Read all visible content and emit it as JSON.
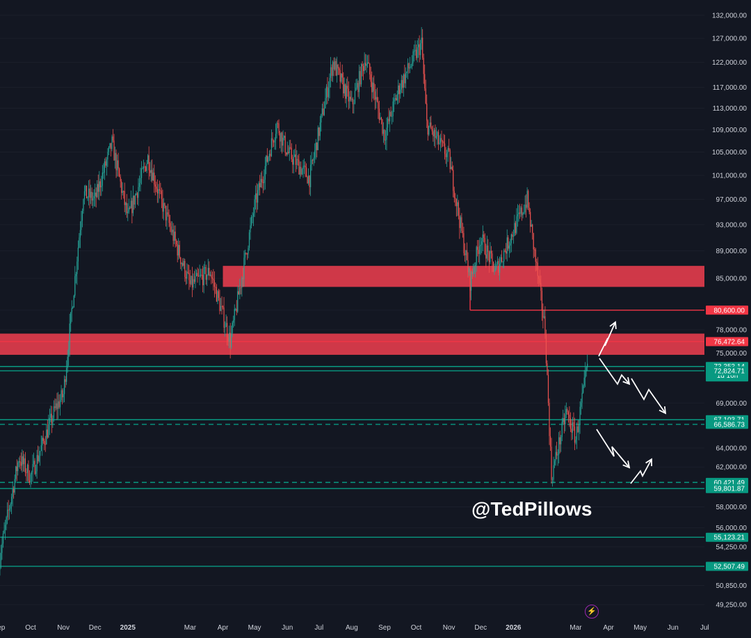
{
  "chart_data": {
    "type": "candlestick",
    "y_axis": {
      "scale": "log",
      "ticks": [
        132000,
        127000,
        122000,
        117000,
        113000,
        109000,
        105000,
        101000,
        97000,
        93000,
        89000,
        85000,
        80600,
        78000,
        75000,
        69000,
        64000,
        62000,
        58000,
        56000,
        54250,
        50850,
        49250
      ],
      "tick_labels": [
        "132,000.00",
        "127,000.00",
        "122,000.00",
        "117,000.00",
        "113,000.00",
        "109,000.00",
        "105,000.00",
        "101,000.00",
        "97,000.00",
        "93,000.00",
        "89,000.00",
        "85,000.00",
        "80,600.00",
        "78,000.00",
        "75,000.00",
        "69,000.00",
        "64,000.00",
        "62,000.00",
        "58,000.00",
        "56,000.00",
        "54,250.00",
        "50,850.00",
        "49,250.00"
      ]
    },
    "x_axis": {
      "ticks": [
        "Sep",
        "Oct",
        "Nov",
        "Dec",
        "2025",
        "Mar",
        "Apr",
        "May",
        "Jun",
        "Jul",
        "Aug",
        "Sep",
        "Oct",
        "Nov",
        "Dec",
        "2026",
        "Mar",
        "Apr",
        "May",
        "Jun",
        "Jul"
      ],
      "bold": [
        "2025",
        "2026"
      ]
    },
    "price_path": [
      {
        "x": "2024-09",
        "y": 53000
      },
      {
        "x": "2024-09-20",
        "y": 63000
      },
      {
        "x": "2024-10",
        "y": 61000
      },
      {
        "x": "2024-10-25",
        "y": 68500
      },
      {
        "x": "2024-11",
        "y": 70000
      },
      {
        "x": "2024-11-20",
        "y": 98000
      },
      {
        "x": "2024-12",
        "y": 97000
      },
      {
        "x": "2024-12-17",
        "y": 106500
      },
      {
        "x": "2025-01",
        "y": 94000
      },
      {
        "x": "2025-01-20",
        "y": 104000
      },
      {
        "x": "2025-02",
        "y": 97000
      },
      {
        "x": "2025-03",
        "y": 84000
      },
      {
        "x": "2025-03-20",
        "y": 86000
      },
      {
        "x": "2025-04-08",
        "y": 76500
      },
      {
        "x": "2025-05",
        "y": 96000
      },
      {
        "x": "2025-05-22",
        "y": 110000
      },
      {
        "x": "2025-06",
        "y": 105000
      },
      {
        "x": "2025-06-22",
        "y": 100500
      },
      {
        "x": "2025-07-14",
        "y": 122000
      },
      {
        "x": "2025-08",
        "y": 113500
      },
      {
        "x": "2025-08-14",
        "y": 123000
      },
      {
        "x": "2025-09",
        "y": 108000
      },
      {
        "x": "2025-09-15",
        "y": 117000
      },
      {
        "x": "2025-10-06",
        "y": 126000
      },
      {
        "x": "2025-10-11",
        "y": 110000
      },
      {
        "x": "2025-11",
        "y": 104000
      },
      {
        "x": "2025-11-21",
        "y": 84500
      },
      {
        "x": "2025-12",
        "y": 91000
      },
      {
        "x": "2025-12-15",
        "y": 86000
      },
      {
        "x": "2026-01-14",
        "y": 97000
      },
      {
        "x": "2026-01-31",
        "y": 78000
      },
      {
        "x": "2026-02-06",
        "y": 61000
      },
      {
        "x": "2026-02-20",
        "y": 68000
      },
      {
        "x": "2026-03",
        "y": 65000
      },
      {
        "x": "2026-03-12",
        "y": 73353
      }
    ],
    "resistance_zones": [
      {
        "from": 83800,
        "to": 86800,
        "start": "2025-04"
      },
      {
        "from": 74800,
        "to": 77500,
        "start": "2024-09"
      }
    ],
    "levels": [
      {
        "value": 80600,
        "label": "80,600.00",
        "color": "#f23645",
        "style": "solid"
      },
      {
        "value": 76472.64,
        "label": "76,472.64",
        "color": "#f23645",
        "style": "solid"
      },
      {
        "value": 73353.14,
        "label": "73,353.14",
        "color": "#089981",
        "style": "solid",
        "current": true,
        "countdown": "1d 16h"
      },
      {
        "value": 72824.71,
        "label": "72,824.71",
        "color": "#089981",
        "style": "solid"
      },
      {
        "value": 67103.71,
        "label": "67,103.71",
        "color": "#089981",
        "style": "solid"
      },
      {
        "value": 66586.73,
        "label": "66,586.73",
        "color": "#089981",
        "style": "dashed"
      },
      {
        "value": 60421.49,
        "label": "60,421.49",
        "color": "#089981",
        "style": "dashed"
      },
      {
        "value": 59801.87,
        "label": "59,801.87",
        "color": "#089981",
        "style": "solid"
      },
      {
        "value": 55123.21,
        "label": "55,123.21",
        "color": "#089981",
        "style": "solid"
      },
      {
        "value": 52507.49,
        "label": "52,507.49",
        "color": "#089981",
        "style": "solid"
      }
    ],
    "colors": {
      "background": "#131722",
      "up": "#26a69a",
      "down": "#ef5350",
      "zone": "#e03c4c",
      "arrows": "#ffffff"
    }
  },
  "watermark": "@TedPillows"
}
